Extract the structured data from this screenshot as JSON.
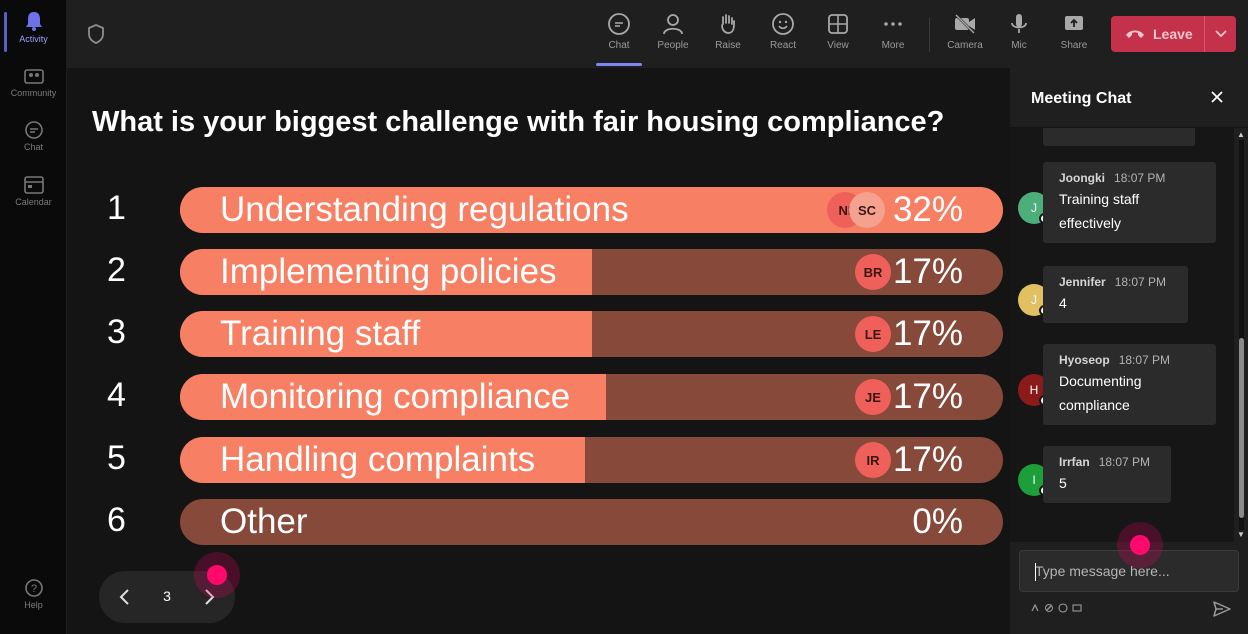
{
  "rail": {
    "items": [
      {
        "label": "Activity",
        "icon": "bell-icon"
      },
      {
        "label": "Community",
        "icon": "community-icon"
      },
      {
        "label": "Chat",
        "icon": "chat-icon"
      },
      {
        "label": "Calendar",
        "icon": "calendar-icon"
      }
    ],
    "help": "Help"
  },
  "toolbar": {
    "chat": "Chat",
    "people": "People",
    "raise": "Raise",
    "react": "React",
    "view": "View",
    "more": "More",
    "camera": "Camera",
    "mic": "Mic",
    "share": "Share",
    "leave": "Leave"
  },
  "poll": {
    "question": "What is your biggest challenge with fair housing compliance?",
    "options": [
      {
        "num": "1",
        "label": "Understanding regulations",
        "percent": 32,
        "percent_label": "32%",
        "voters": [
          "NI",
          "SC"
        ]
      },
      {
        "num": "2",
        "label": "Implementing policies",
        "percent": 17,
        "percent_label": "17%",
        "voters": [
          "BR"
        ]
      },
      {
        "num": "3",
        "label": "Training staff",
        "percent": 17,
        "percent_label": "17%",
        "voters": [
          "LE"
        ]
      },
      {
        "num": "4",
        "label": "Monitoring compliance",
        "percent": 17,
        "percent_label": "17%",
        "voters": [
          "JE"
        ]
      },
      {
        "num": "5",
        "label": "Handling complaints",
        "percent": 17,
        "percent_label": "17%",
        "voters": [
          "IR"
        ]
      },
      {
        "num": "6",
        "label": "Other",
        "percent": 0,
        "percent_label": "0%",
        "voters": []
      }
    ],
    "page": "3"
  },
  "chat": {
    "title": "Meeting Chat",
    "messages": [
      {
        "initial": "J",
        "name": "Joongki",
        "time": "18:07 PM",
        "text_lines": [
          "Training staff",
          "effectively"
        ],
        "color": "#4caf7a"
      },
      {
        "initial": "J",
        "name": "Jennifer",
        "time": "18:07 PM",
        "text_lines": [
          "4"
        ],
        "color": "#e0c060"
      },
      {
        "initial": "H",
        "name": "Hyoseop",
        "time": "18:07 PM",
        "text_lines": [
          "Documenting",
          "compliance"
        ],
        "color": "#8b1a1a"
      },
      {
        "initial": "I",
        "name": "Irrfan",
        "time": "18:07 PM",
        "text_lines": [
          "5"
        ],
        "color": "#1e9e3a"
      }
    ],
    "compose_placeholder": "Type message here..."
  },
  "colors": {
    "bar_fill": "#f77f63",
    "bar_track": "#87493a",
    "leave": "#c4314b",
    "accent": "#7f85f5"
  }
}
